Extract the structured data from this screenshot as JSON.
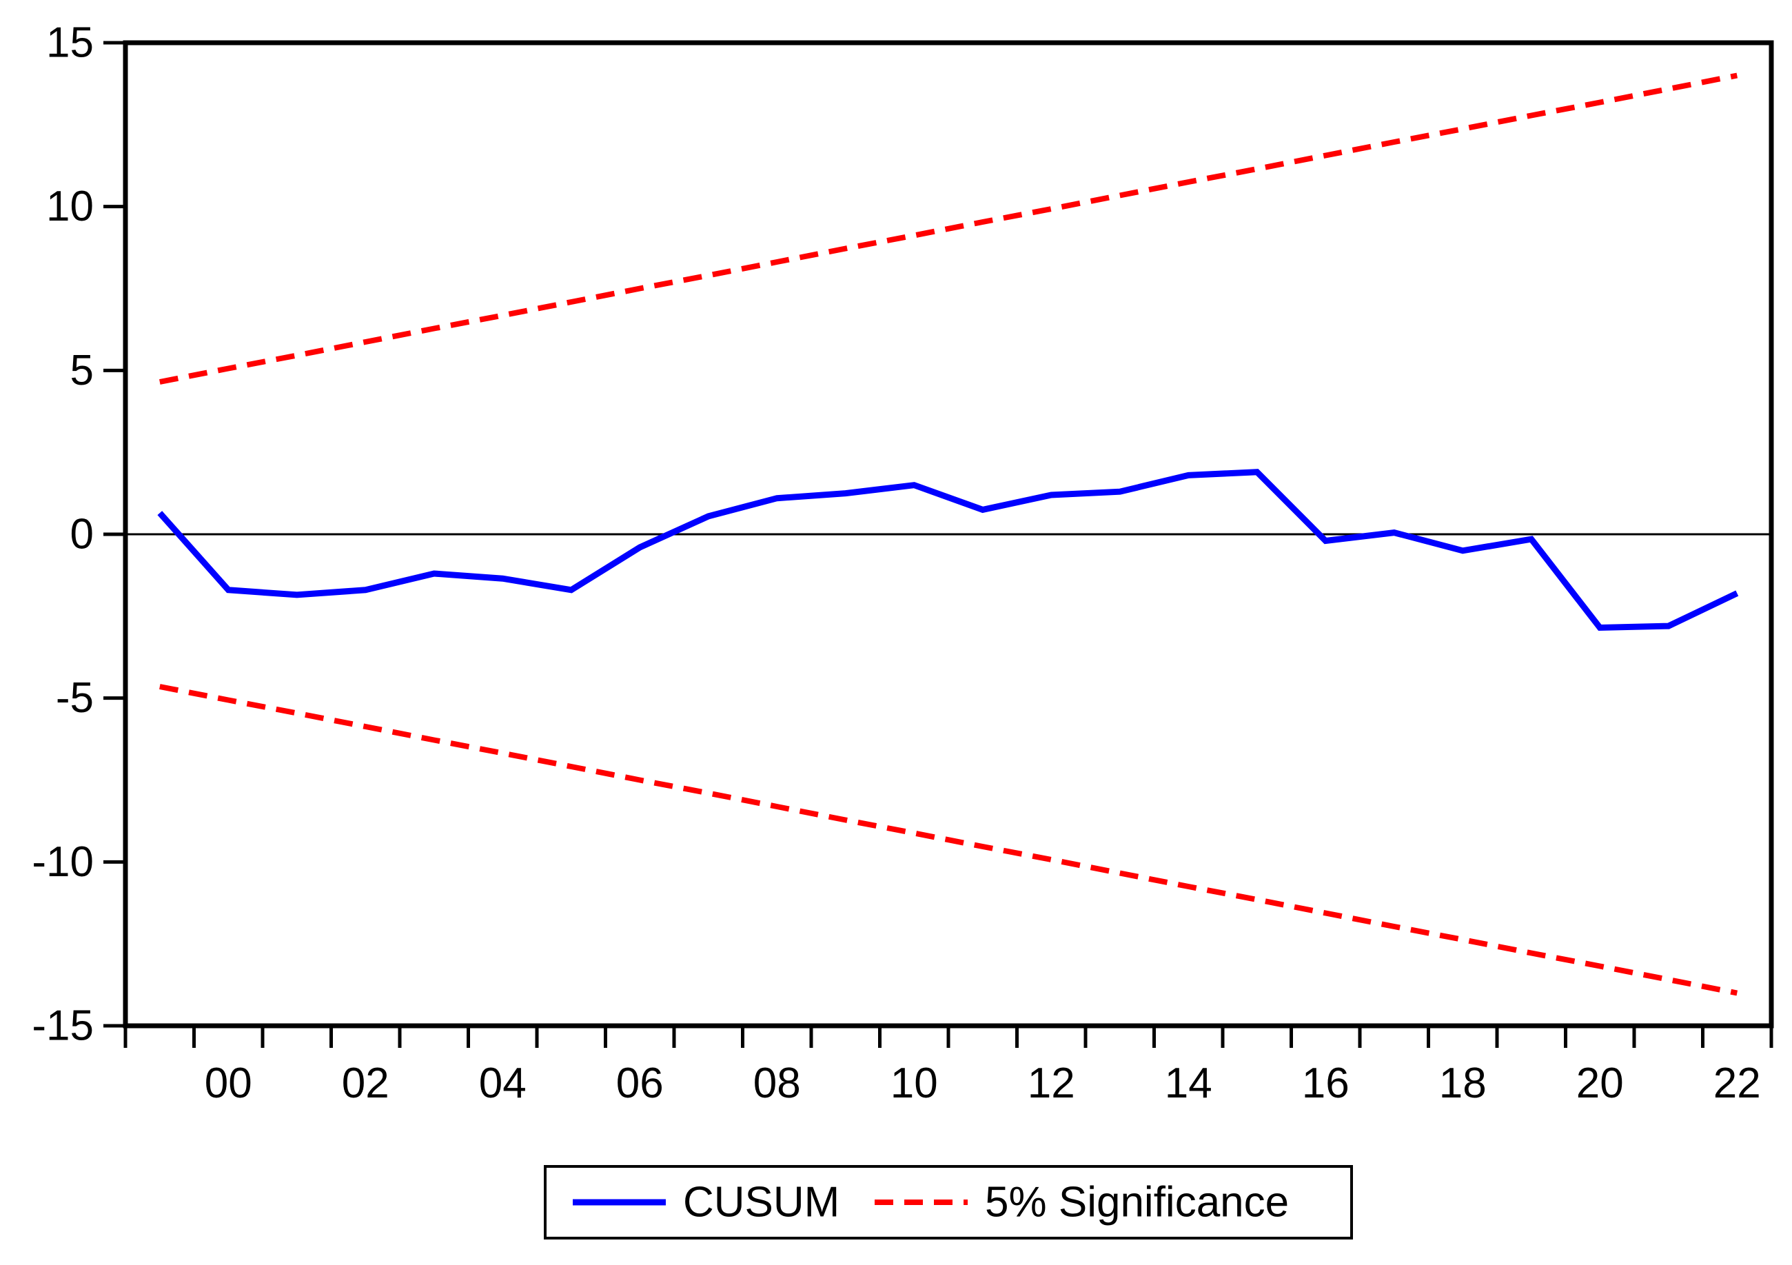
{
  "figure": {
    "background": "#ffffff",
    "axis_color": "#000000",
    "legend": {
      "position": "bottom-center",
      "boxed": true,
      "items": [
        {
          "label": "CUSUM",
          "color": "#0000ff",
          "line_style": "solid"
        },
        {
          "label": "5% Significance",
          "color": "#ff0000",
          "line_style": "dashed"
        }
      ]
    }
  },
  "chart_data": {
    "type": "line",
    "title": "",
    "xlabel": "",
    "ylabel": "",
    "grid": false,
    "zero_line": true,
    "ylim": [
      -15,
      15
    ],
    "y_ticks": [
      "15",
      "10",
      "5",
      "0",
      "-5",
      "-10",
      "-15"
    ],
    "y_tick_values": [
      15,
      10,
      5,
      0,
      -5,
      -10,
      -15
    ],
    "x": [
      1999,
      2000,
      2001,
      2002,
      2003,
      2004,
      2005,
      2006,
      2007,
      2008,
      2009,
      2010,
      2011,
      2012,
      2013,
      2014,
      2015,
      2016,
      2017,
      2018,
      2019,
      2020,
      2021,
      2022
    ],
    "x_tick_labels": [
      {
        "year": 2000,
        "label": "00"
      },
      {
        "year": 2002,
        "label": "02"
      },
      {
        "year": 2004,
        "label": "04"
      },
      {
        "year": 2006,
        "label": "06"
      },
      {
        "year": 2008,
        "label": "08"
      },
      {
        "year": 2010,
        "label": "10"
      },
      {
        "year": 2012,
        "label": "12"
      },
      {
        "year": 2014,
        "label": "14"
      },
      {
        "year": 2016,
        "label": "16"
      },
      {
        "year": 2018,
        "label": "18"
      },
      {
        "year": 2020,
        "label": "20"
      },
      {
        "year": 2022,
        "label": "22"
      }
    ],
    "series": [
      {
        "name": "CUSUM",
        "color": "#0000ff",
        "style": "solid",
        "values": [
          0.65,
          -1.7,
          -1.85,
          -1.7,
          -1.2,
          -1.35,
          -1.7,
          -0.4,
          0.55,
          1.1,
          1.25,
          1.5,
          0.75,
          1.2,
          1.3,
          1.8,
          1.9,
          -0.2,
          0.05,
          -0.5,
          -0.15,
          -2.85,
          -2.8,
          -1.8
        ]
      },
      {
        "name": "5% Significance (upper)",
        "color": "#ff0000",
        "style": "dashed",
        "values": [
          4.65,
          5.06,
          5.46,
          5.87,
          6.28,
          6.68,
          7.09,
          7.5,
          7.9,
          8.31,
          8.72,
          9.12,
          9.53,
          9.93,
          10.34,
          10.75,
          11.15,
          11.56,
          11.97,
          12.37,
          12.78,
          13.18,
          13.59,
          14.0
        ]
      },
      {
        "name": "5% Significance (lower)",
        "color": "#ff0000",
        "style": "dashed",
        "values": [
          -4.65,
          -5.06,
          -5.46,
          -5.87,
          -6.28,
          -6.68,
          -7.09,
          -7.5,
          -7.9,
          -8.31,
          -8.72,
          -9.12,
          -9.53,
          -9.93,
          -10.34,
          -10.75,
          -11.15,
          -11.56,
          -11.97,
          -12.37,
          -12.78,
          -13.18,
          -13.59,
          -14.0
        ]
      }
    ]
  }
}
